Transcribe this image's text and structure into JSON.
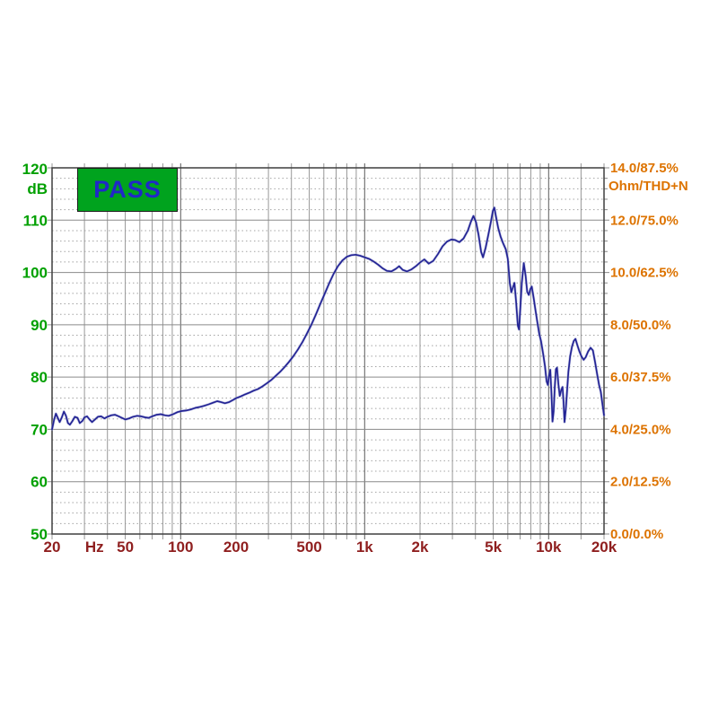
{
  "status": {
    "label": "PASS",
    "bg_color": "#00A31E",
    "text_color": "#2028C8",
    "border_color": "#1c1c1c"
  },
  "chart_data": {
    "type": "line",
    "title": "",
    "x_axis": {
      "scale": "log",
      "min": 20,
      "max": 20000,
      "unit": "Hz",
      "label_color": "#8F1F1F",
      "ticks": [
        {
          "v": 20,
          "label": "20"
        },
        {
          "v": 34,
          "label": "Hz"
        },
        {
          "v": 50,
          "label": "50"
        },
        {
          "v": 100,
          "label": "100"
        },
        {
          "v": 200,
          "label": "200"
        },
        {
          "v": 500,
          "label": "500"
        },
        {
          "v": 1000,
          "label": "1k"
        },
        {
          "v": 2000,
          "label": "2k"
        },
        {
          "v": 5000,
          "label": "5k"
        },
        {
          "v": 10000,
          "label": "10k"
        },
        {
          "v": 20000,
          "label": "20k"
        }
      ],
      "gridlines": [
        20,
        30,
        40,
        50,
        60,
        70,
        80,
        90,
        100,
        200,
        300,
        400,
        500,
        600,
        700,
        800,
        900,
        1000,
        2000,
        3000,
        4000,
        5000,
        6000,
        7000,
        8000,
        9000,
        10000,
        15000,
        20000
      ]
    },
    "y_left": {
      "unit": "dB",
      "min": 50,
      "max": 120,
      "major_step": 10,
      "minor_step": 2,
      "label_color": "#00A000",
      "labels": [
        "120",
        "110",
        "100",
        "90",
        "80",
        "70",
        "60",
        "50"
      ]
    },
    "y_right": {
      "unit_line": "Ohm/THD+N",
      "label_color": "#DD7300",
      "labels": [
        "14.0/87.5%",
        "12.0/75.0%",
        "10.0/62.5%",
        "8.0/50.0%",
        "6.0/37.5%",
        "4.0/25.0%",
        "2.0/12.5%",
        "0.0/0.0%"
      ]
    },
    "grid": {
      "minor_v_color": "#979797",
      "decade_v_color": "#5a5a5a",
      "major_h_color": "#8a8a8a",
      "minor_h_color": "#a4a4a4",
      "border_color": "#3f3f3f",
      "grid_on": true
    },
    "series": [
      {
        "name": "spl-response",
        "color": "#232394",
        "halo_color": "#9FA5D6",
        "points": [
          [
            20,
            70.0
          ],
          [
            20.5,
            71.8
          ],
          [
            21,
            73.0
          ],
          [
            21.5,
            72.2
          ],
          [
            22,
            71.4
          ],
          [
            22.6,
            72.3
          ],
          [
            23.2,
            73.4
          ],
          [
            23.8,
            72.6
          ],
          [
            24.4,
            71.2
          ],
          [
            25,
            70.9
          ],
          [
            25.8,
            71.6
          ],
          [
            26.6,
            72.4
          ],
          [
            27.5,
            72.2
          ],
          [
            28.3,
            71.2
          ],
          [
            29.2,
            71.6
          ],
          [
            30,
            72.3
          ],
          [
            31,
            72.5
          ],
          [
            32,
            71.9
          ],
          [
            33,
            71.4
          ],
          [
            34.2,
            71.9
          ],
          [
            35.5,
            72.4
          ],
          [
            37,
            72.5
          ],
          [
            38.5,
            72.1
          ],
          [
            40,
            72.4
          ],
          [
            42,
            72.7
          ],
          [
            44,
            72.8
          ],
          [
            46,
            72.5
          ],
          [
            48,
            72.2
          ],
          [
            50,
            71.9
          ],
          [
            52.5,
            72.1
          ],
          [
            55,
            72.4
          ],
          [
            58,
            72.6
          ],
          [
            61,
            72.5
          ],
          [
            64,
            72.3
          ],
          [
            67,
            72.2
          ],
          [
            70,
            72.5
          ],
          [
            74,
            72.8
          ],
          [
            78,
            72.9
          ],
          [
            82,
            72.7
          ],
          [
            86,
            72.6
          ],
          [
            91,
            72.9
          ],
          [
            96,
            73.3
          ],
          [
            101,
            73.5
          ],
          [
            107,
            73.6
          ],
          [
            113,
            73.8
          ],
          [
            120,
            74.1
          ],
          [
            127,
            74.3
          ],
          [
            134,
            74.5
          ],
          [
            142,
            74.8
          ],
          [
            150,
            75.1
          ],
          [
            158,
            75.4
          ],
          [
            166,
            75.2
          ],
          [
            174,
            75.0
          ],
          [
            183,
            75.2
          ],
          [
            192,
            75.6
          ],
          [
            201,
            76.0
          ],
          [
            212,
            76.3
          ],
          [
            224,
            76.7
          ],
          [
            236,
            77.0
          ],
          [
            249,
            77.4
          ],
          [
            263,
            77.7
          ],
          [
            278,
            78.2
          ],
          [
            294,
            78.8
          ],
          [
            310,
            79.4
          ],
          [
            328,
            80.2
          ],
          [
            347,
            81.0
          ],
          [
            367,
            81.9
          ],
          [
            388,
            82.9
          ],
          [
            410,
            84.0
          ],
          [
            434,
            85.3
          ],
          [
            459,
            86.7
          ],
          [
            485,
            88.3
          ],
          [
            513,
            90.0
          ],
          [
            542,
            91.9
          ],
          [
            573,
            93.9
          ],
          [
            606,
            95.9
          ],
          [
            641,
            97.9
          ],
          [
            677,
            99.7
          ],
          [
            716,
            101.2
          ],
          [
            757,
            102.3
          ],
          [
            800,
            103.0
          ],
          [
            846,
            103.3
          ],
          [
            894,
            103.4
          ],
          [
            945,
            103.2
          ],
          [
            1000,
            102.9
          ],
          [
            1057,
            102.6
          ],
          [
            1118,
            102.1
          ],
          [
            1182,
            101.5
          ],
          [
            1250,
            100.8
          ],
          [
            1322,
            100.3
          ],
          [
            1398,
            100.2
          ],
          [
            1478,
            100.7
          ],
          [
            1540,
            101.2
          ],
          [
            1610,
            100.5
          ],
          [
            1700,
            100.2
          ],
          [
            1800,
            100.6
          ],
          [
            1900,
            101.2
          ],
          [
            2000,
            101.9
          ],
          [
            2110,
            102.5
          ],
          [
            2230,
            101.7
          ],
          [
            2360,
            102.2
          ],
          [
            2500,
            103.5
          ],
          [
            2650,
            105.0
          ],
          [
            2800,
            105.9
          ],
          [
            2960,
            106.3
          ],
          [
            3100,
            106.2
          ],
          [
            3270,
            105.8
          ],
          [
            3450,
            106.5
          ],
          [
            3640,
            108.0
          ],
          [
            3780,
            109.7
          ],
          [
            3900,
            110.8
          ],
          [
            4030,
            109.6
          ],
          [
            4160,
            107.2
          ],
          [
            4300,
            103.9
          ],
          [
            4400,
            102.9
          ],
          [
            4550,
            104.8
          ],
          [
            4700,
            107.2
          ],
          [
            4850,
            109.6
          ],
          [
            4980,
            111.8
          ],
          [
            5070,
            112.4
          ],
          [
            5180,
            110.6
          ],
          [
            5320,
            108.5
          ],
          [
            5480,
            106.9
          ],
          [
            5650,
            105.6
          ],
          [
            5850,
            104.4
          ],
          [
            6000,
            102.6
          ],
          [
            6150,
            98.0
          ],
          [
            6270,
            96.2
          ],
          [
            6400,
            97.2
          ],
          [
            6520,
            98.0
          ],
          [
            6650,
            94.5
          ],
          [
            6800,
            89.8
          ],
          [
            6900,
            89.1
          ],
          [
            7000,
            92.5
          ],
          [
            7150,
            98.0
          ],
          [
            7330,
            101.8
          ],
          [
            7500,
            99.3
          ],
          [
            7650,
            96.3
          ],
          [
            7800,
            95.7
          ],
          [
            7950,
            96.8
          ],
          [
            8100,
            97.3
          ],
          [
            8300,
            95.0
          ],
          [
            8500,
            92.6
          ],
          [
            8700,
            90.3
          ],
          [
            8900,
            88.2
          ],
          [
            9100,
            86.8
          ],
          [
            9350,
            84.3
          ],
          [
            9550,
            82.1
          ],
          [
            9750,
            79.2
          ],
          [
            9900,
            78.5
          ],
          [
            10050,
            80.2
          ],
          [
            10200,
            81.4
          ],
          [
            10350,
            77.0
          ],
          [
            10500,
            71.5
          ],
          [
            10650,
            73.5
          ],
          [
            10800,
            78.0
          ],
          [
            10950,
            81.5
          ],
          [
            11100,
            81.8
          ],
          [
            11300,
            78.6
          ],
          [
            11500,
            76.4
          ],
          [
            11700,
            77.5
          ],
          [
            11900,
            78.1
          ],
          [
            12050,
            75.2
          ],
          [
            12200,
            71.4
          ],
          [
            12400,
            73.8
          ],
          [
            12600,
            77.5
          ],
          [
            12800,
            81.0
          ],
          [
            13100,
            84.0
          ],
          [
            13400,
            85.8
          ],
          [
            13700,
            86.9
          ],
          [
            14000,
            87.3
          ],
          [
            14300,
            86.2
          ],
          [
            14700,
            84.9
          ],
          [
            15100,
            83.9
          ],
          [
            15500,
            83.3
          ],
          [
            15900,
            83.8
          ],
          [
            16400,
            84.9
          ],
          [
            16900,
            85.6
          ],
          [
            17400,
            85.1
          ],
          [
            17900,
            82.8
          ],
          [
            18400,
            80.3
          ],
          [
            18800,
            78.5
          ],
          [
            19200,
            77.2
          ],
          [
            19600,
            74.9
          ],
          [
            20000,
            72.7
          ]
        ]
      }
    ]
  }
}
